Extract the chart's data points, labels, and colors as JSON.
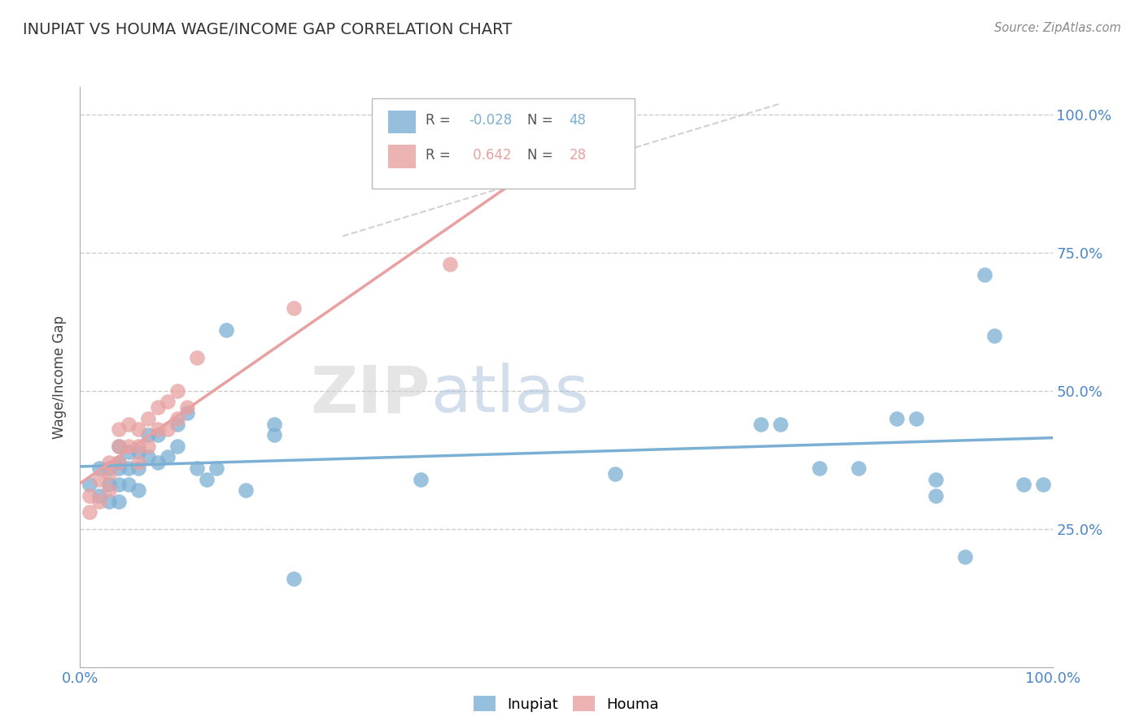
{
  "title": "INUPIAT VS HOUMA WAGE/INCOME GAP CORRELATION CHART",
  "source": "Source: ZipAtlas.com",
  "ylabel": "Wage/Income Gap",
  "xlim": [
    0.0,
    1.0
  ],
  "ylim": [
    0.0,
    1.05
  ],
  "ytick_positions": [
    0.25,
    0.5,
    0.75,
    1.0
  ],
  "inupiat_color": "#7bafd4",
  "houma_color": "#e8a0a0",
  "inupiat_R": -0.028,
  "inupiat_N": 48,
  "houma_R": 0.642,
  "houma_N": 28,
  "background_color": "#ffffff",
  "grid_color": "#cccccc",
  "inupiat_x": [
    0.01,
    0.02,
    0.02,
    0.03,
    0.03,
    0.03,
    0.04,
    0.04,
    0.04,
    0.04,
    0.04,
    0.05,
    0.05,
    0.05,
    0.06,
    0.06,
    0.06,
    0.07,
    0.07,
    0.08,
    0.08,
    0.09,
    0.1,
    0.1,
    0.11,
    0.12,
    0.13,
    0.14,
    0.15,
    0.17,
    0.2,
    0.2,
    0.22,
    0.35,
    0.55,
    0.7,
    0.72,
    0.76,
    0.8,
    0.84,
    0.86,
    0.88,
    0.88,
    0.91,
    0.93,
    0.94,
    0.97,
    0.99
  ],
  "inupiat_y": [
    0.33,
    0.36,
    0.31,
    0.36,
    0.33,
    0.3,
    0.4,
    0.37,
    0.36,
    0.33,
    0.3,
    0.39,
    0.36,
    0.33,
    0.39,
    0.36,
    0.32,
    0.42,
    0.38,
    0.42,
    0.37,
    0.38,
    0.44,
    0.4,
    0.46,
    0.36,
    0.34,
    0.36,
    0.61,
    0.32,
    0.44,
    0.42,
    0.16,
    0.34,
    0.35,
    0.44,
    0.44,
    0.36,
    0.36,
    0.45,
    0.45,
    0.34,
    0.31,
    0.2,
    0.71,
    0.6,
    0.33,
    0.33
  ],
  "houma_x": [
    0.01,
    0.01,
    0.02,
    0.02,
    0.03,
    0.03,
    0.03,
    0.04,
    0.04,
    0.04,
    0.05,
    0.05,
    0.06,
    0.06,
    0.06,
    0.07,
    0.07,
    0.08,
    0.08,
    0.09,
    0.09,
    0.1,
    0.1,
    0.11,
    0.12,
    0.22,
    0.38,
    0.48
  ],
  "houma_y": [
    0.31,
    0.28,
    0.34,
    0.3,
    0.37,
    0.35,
    0.32,
    0.43,
    0.4,
    0.37,
    0.44,
    0.4,
    0.43,
    0.4,
    0.37,
    0.45,
    0.4,
    0.47,
    0.43,
    0.48,
    0.43,
    0.5,
    0.45,
    0.47,
    0.56,
    0.65,
    0.73,
    0.88
  ]
}
